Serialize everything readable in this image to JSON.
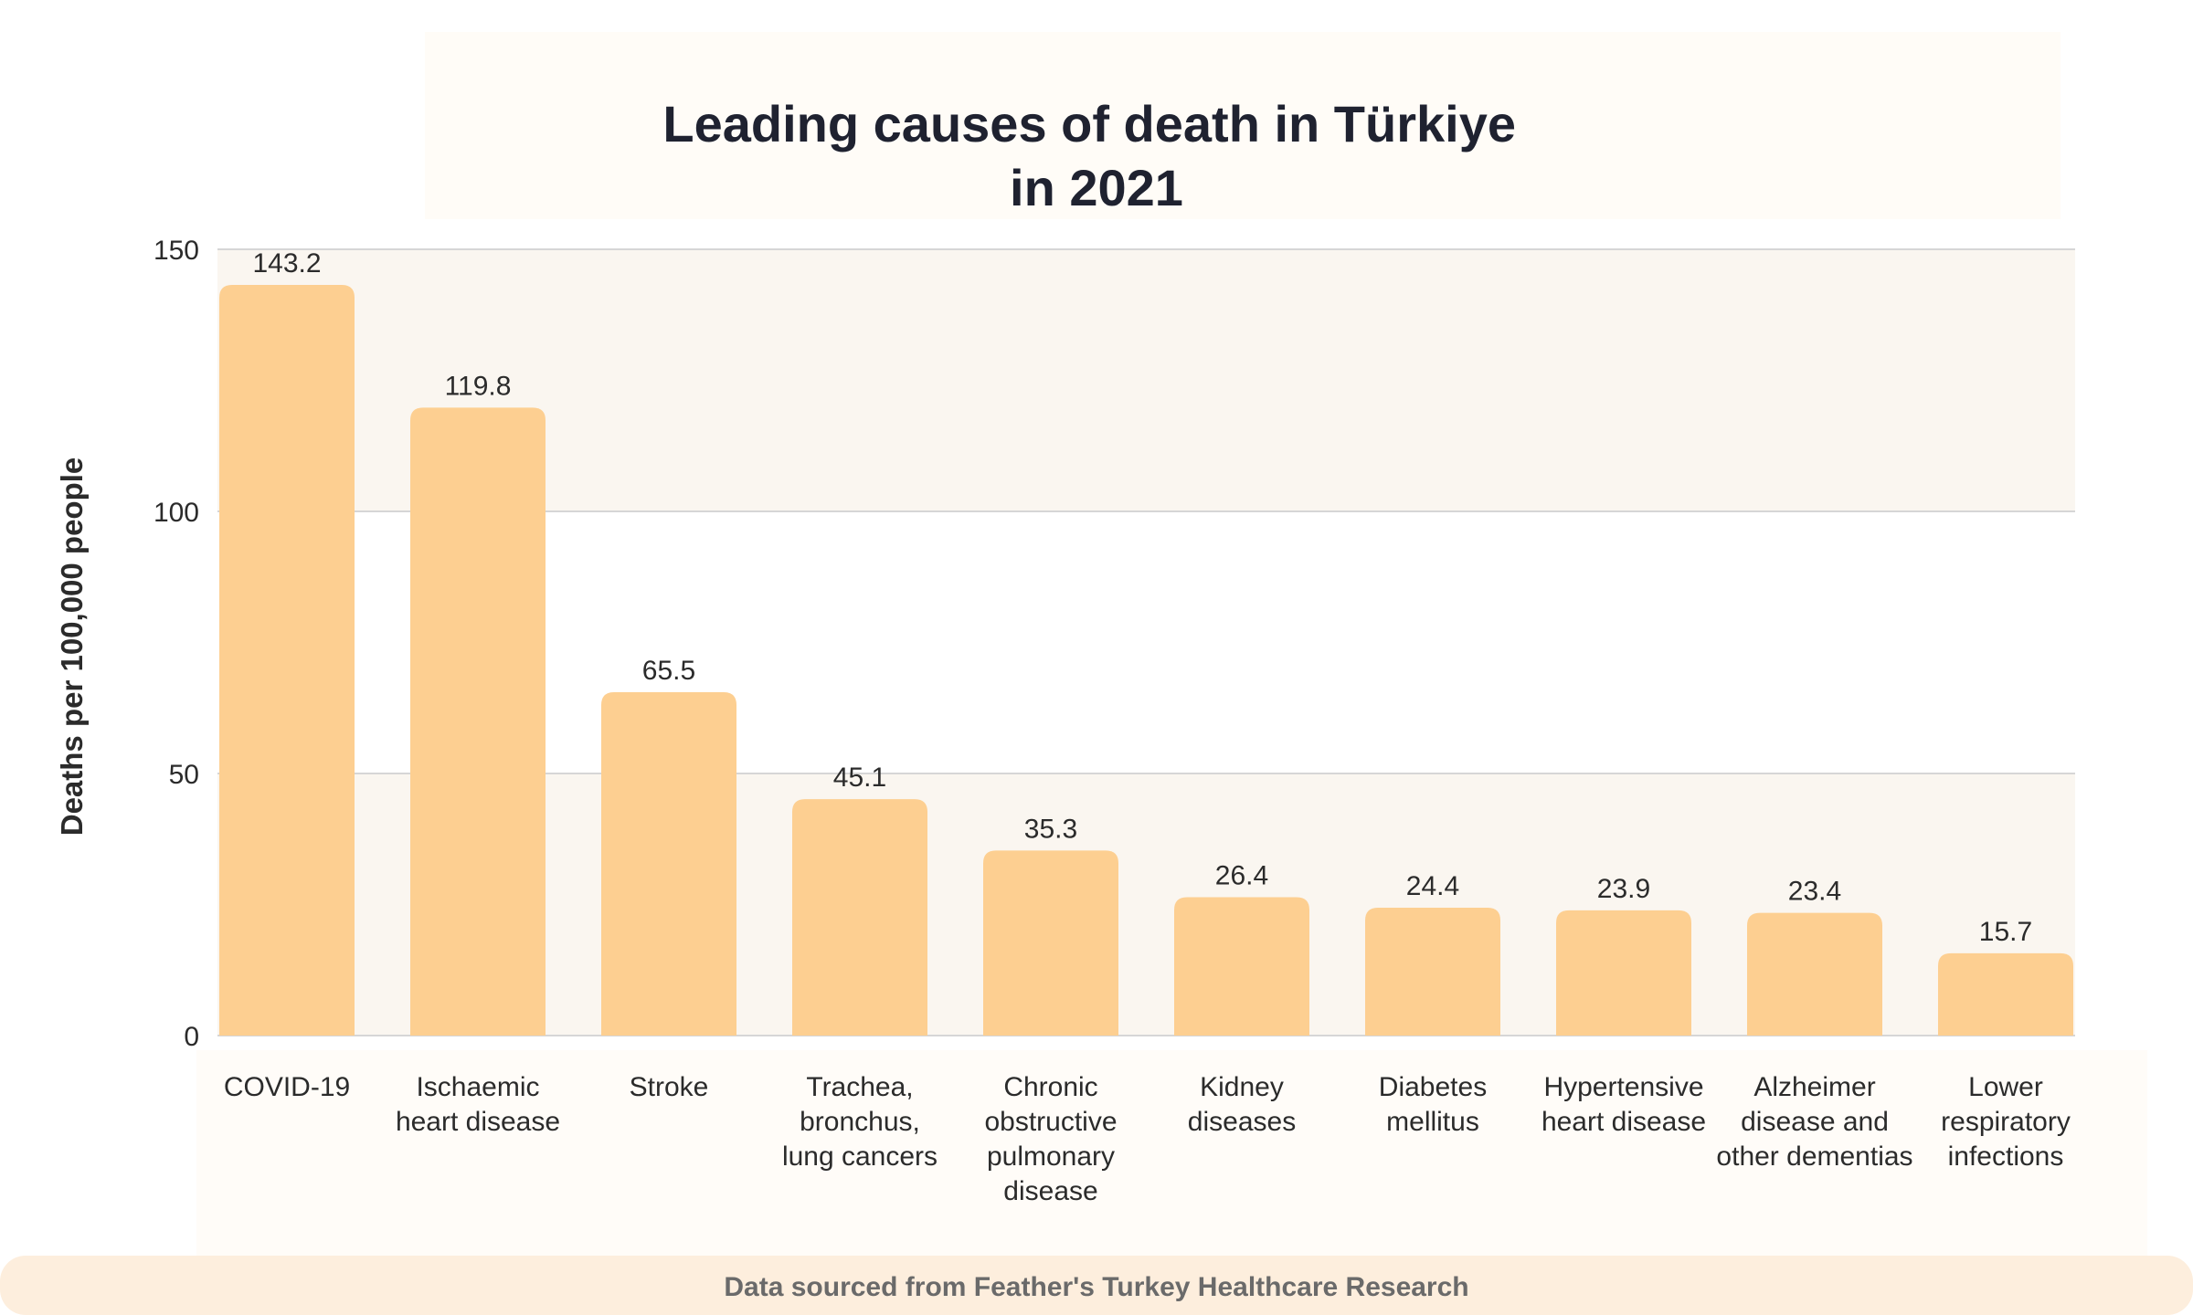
{
  "chart_data": {
    "type": "bar",
    "title": [
      "Leading causes of death in Türkiye",
      "in 2021"
    ],
    "xlabel": "",
    "ylabel": "Deaths per 100,000 people",
    "ylim": [
      0,
      150
    ],
    "yticks": [
      "0",
      "50",
      "100",
      "150"
    ],
    "grid": true,
    "categories": [
      [
        "COVID-19"
      ],
      [
        "Ischaemic",
        "heart disease"
      ],
      [
        "Stroke"
      ],
      [
        "Trachea,",
        "bronchus,",
        "lung cancers"
      ],
      [
        "Chronic",
        "obstructive",
        "pulmonary",
        "disease"
      ],
      [
        "Kidney",
        "diseases"
      ],
      [
        "Diabetes",
        "mellitus"
      ],
      [
        "Hypertensive",
        "heart disease"
      ],
      [
        "Alzheimer",
        "disease and",
        "other dementias"
      ],
      [
        "Lower",
        "respiratory",
        "infections"
      ]
    ],
    "values": [
      143.2,
      119.8,
      65.5,
      45.1,
      35.3,
      26.4,
      24.4,
      23.9,
      23.4,
      15.7
    ],
    "value_labels": [
      "143.2",
      "119.8",
      "65.5",
      "45.1",
      "35.3",
      "26.4",
      "24.4",
      "23.9",
      "23.4",
      "15.7"
    ]
  },
  "footer": {
    "source": "Data sourced from Feather's Turkey Healthcare Research"
  },
  "colors": {
    "bar": "#FDCF91",
    "title_panel": "#FFFCF7",
    "plot_band": "#FAF6F0",
    "label_panel": "#FFFCF8",
    "footer_bg": "#FDEEDD",
    "grid": "#D6D6D6",
    "title_text": "#1F2230",
    "text": "#2B2B2B",
    "footer_text": "#6A6A6A"
  }
}
